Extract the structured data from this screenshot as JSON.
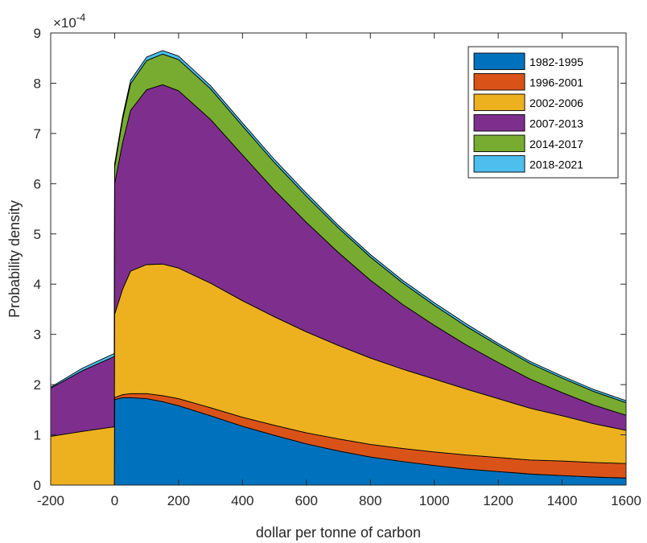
{
  "chart_data": {
    "type": "area",
    "stacked": true,
    "xlabel": "dollar per tonne of carbon",
    "ylabel": "Probability density",
    "y_exponent_label": "×10",
    "y_exponent_power": "-4",
    "xlim": [
      -200,
      1600
    ],
    "ylim": [
      0,
      9
    ],
    "y_units": "1e-4",
    "xticks": [
      -200,
      0,
      200,
      400,
      600,
      800,
      1000,
      1200,
      1400,
      1600
    ],
    "yticks": [
      0,
      1,
      2,
      3,
      4,
      5,
      6,
      7,
      8,
      9
    ],
    "grid": false,
    "legend_position": "top-right",
    "x": [
      -200,
      -100,
      -1,
      0,
      25,
      50,
      100,
      150,
      200,
      300,
      400,
      500,
      600,
      700,
      800,
      900,
      1000,
      1100,
      1200,
      1300,
      1400,
      1500,
      1600
    ],
    "series": [
      {
        "name": "1982-1995",
        "color": "#0072BD",
        "values": [
          0,
          0,
          0,
          1.7,
          1.74,
          1.74,
          1.72,
          1.66,
          1.58,
          1.38,
          1.17,
          0.99,
          0.82,
          0.68,
          0.56,
          0.47,
          0.39,
          0.32,
          0.27,
          0.22,
          0.19,
          0.16,
          0.14
        ]
      },
      {
        "name": "1996-2001",
        "color": "#D95319",
        "values": [
          0,
          0,
          0,
          0.04,
          0.06,
          0.08,
          0.1,
          0.12,
          0.14,
          0.16,
          0.18,
          0.2,
          0.22,
          0.24,
          0.25,
          0.26,
          0.27,
          0.28,
          0.28,
          0.28,
          0.29,
          0.29,
          0.29
        ]
      },
      {
        "name": "2002-2006",
        "color": "#EDB120",
        "values": [
          0.97,
          1.07,
          1.16,
          1.66,
          2.1,
          2.44,
          2.57,
          2.62,
          2.6,
          2.48,
          2.32,
          2.16,
          2.01,
          1.86,
          1.72,
          1.58,
          1.45,
          1.31,
          1.17,
          1.03,
          0.9,
          0.77,
          0.66
        ]
      },
      {
        "name": "2007-2013",
        "color": "#7E2F8E",
        "values": [
          0.96,
          1.21,
          1.4,
          2.6,
          2.92,
          3.2,
          3.48,
          3.57,
          3.53,
          3.26,
          2.9,
          2.52,
          2.18,
          1.85,
          1.55,
          1.29,
          1.07,
          0.88,
          0.72,
          0.58,
          0.46,
          0.37,
          0.3
        ]
      },
      {
        "name": "2014-2017",
        "color": "#77AC30",
        "values": [
          0,
          0,
          0,
          0.33,
          0.46,
          0.53,
          0.58,
          0.61,
          0.62,
          0.61,
          0.58,
          0.55,
          0.52,
          0.49,
          0.46,
          0.43,
          0.4,
          0.37,
          0.34,
          0.31,
          0.29,
          0.27,
          0.25
        ]
      },
      {
        "name": "2018-2021",
        "color": "#4DBEEE",
        "values": [
          0.02,
          0.05,
          0.06,
          0.06,
          0.06,
          0.07,
          0.07,
          0.07,
          0.07,
          0.06,
          0.06,
          0.06,
          0.06,
          0.05,
          0.05,
          0.05,
          0.05,
          0.05,
          0.04,
          0.04,
          0.04,
          0.04,
          0.04
        ]
      }
    ]
  }
}
